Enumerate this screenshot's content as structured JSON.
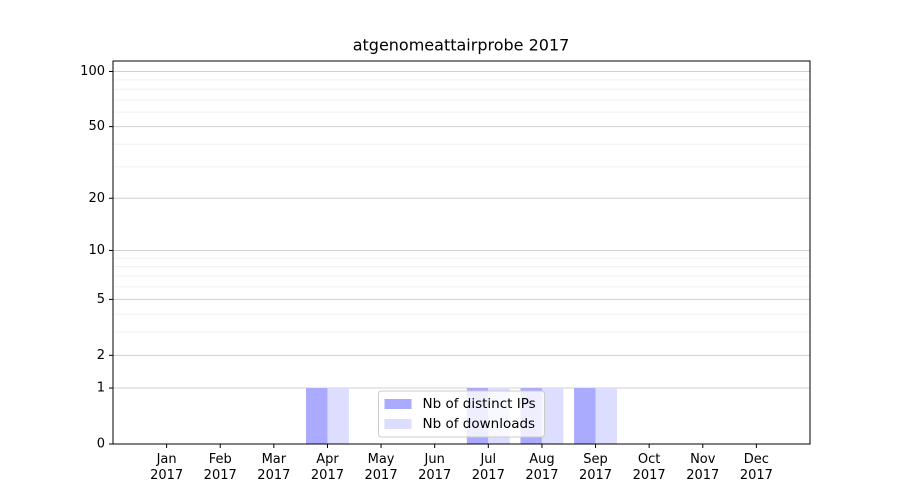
{
  "chart_data": {
    "type": "bar",
    "title": "atgenomeattairprobe 2017",
    "categories": [
      "Jan\n2017",
      "Feb\n2017",
      "Mar\n2017",
      "Apr\n2017",
      "May\n2017",
      "Jun\n2017",
      "Jul\n2017",
      "Aug\n2017",
      "Sep\n2017",
      "Oct\n2017",
      "Nov\n2017",
      "Dec\n2017"
    ],
    "series": [
      {
        "name": "Nb of distinct IPs",
        "color": "#aaaaff",
        "values": [
          0,
          0,
          0,
          1,
          0,
          0,
          1,
          1,
          1,
          0,
          0,
          0
        ]
      },
      {
        "name": "Nb of downloads",
        "color": "#ddddff",
        "values": [
          0,
          0,
          0,
          1,
          0,
          0,
          1,
          1,
          1,
          0,
          0,
          0
        ]
      }
    ],
    "yscale": "log1p",
    "ylim": [
      0,
      114
    ],
    "yticks": [
      0,
      1,
      2,
      5,
      10,
      20,
      50,
      100
    ],
    "yminorticks": [
      3,
      4,
      6,
      7,
      8,
      9,
      30,
      40,
      60,
      70,
      80,
      90
    ],
    "grid": true,
    "legend": "lower center"
  }
}
